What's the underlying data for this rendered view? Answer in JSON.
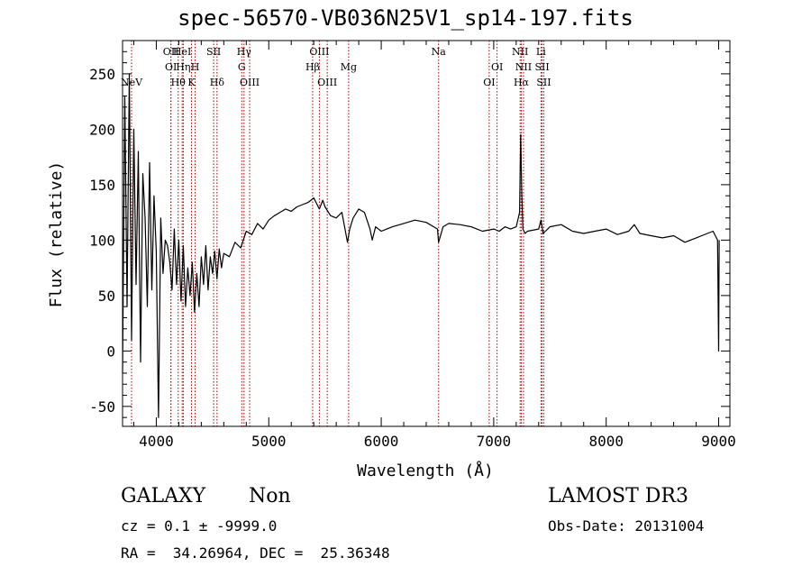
{
  "chart_data": {
    "type": "line",
    "title": "spec-56570-VB036N25V1_sp14-197.fits",
    "xlabel": "Wavelength (Å)",
    "ylabel": "Flux (relative)",
    "xlim": [
      3700,
      9100
    ],
    "ylim": [
      -68,
      280
    ],
    "x_ticks": [
      4000,
      5000,
      6000,
      7000,
      8000,
      9000
    ],
    "y_ticks": [
      -50,
      0,
      50,
      100,
      150,
      200,
      250
    ],
    "series": [
      {
        "name": "flux",
        "x": [
          3700,
          3720,
          3740,
          3760,
          3780,
          3800,
          3820,
          3840,
          3860,
          3880,
          3900,
          3920,
          3940,
          3960,
          3980,
          4000,
          4020,
          4040,
          4060,
          4080,
          4100,
          4120,
          4140,
          4160,
          4180,
          4200,
          4220,
          4240,
          4260,
          4280,
          4300,
          4320,
          4340,
          4360,
          4380,
          4400,
          4420,
          4440,
          4460,
          4480,
          4500,
          4520,
          4540,
          4560,
          4580,
          4600,
          4650,
          4700,
          4750,
          4800,
          4850,
          4900,
          4950,
          5000,
          5050,
          5100,
          5150,
          5200,
          5250,
          5300,
          5350,
          5400,
          5450,
          5480,
          5500,
          5550,
          5600,
          5650,
          5700,
          5720,
          5750,
          5800,
          5850,
          5900,
          5920,
          5950,
          6000,
          6100,
          6200,
          6300,
          6400,
          6500,
          6510,
          6550,
          6600,
          6700,
          6800,
          6900,
          7000,
          7050,
          7100,
          7150,
          7200,
          7230,
          7240,
          7250,
          7260,
          7280,
          7300,
          7400,
          7420,
          7430,
          7440,
          7460,
          7500,
          7600,
          7700,
          7800,
          7900,
          8000,
          8100,
          8200,
          8250,
          8300,
          8400,
          8500,
          8600,
          8700,
          8800,
          8900,
          8950,
          8990,
          9000,
          9005
        ],
        "values": [
          -20,
          230,
          40,
          250,
          10,
          200,
          60,
          180,
          -10,
          160,
          120,
          40,
          170,
          55,
          140,
          90,
          -60,
          120,
          70,
          100,
          95,
          80,
          55,
          110,
          60,
          100,
          45,
          95,
          40,
          75,
          50,
          80,
          35,
          70,
          40,
          85,
          60,
          95,
          55,
          85,
          70,
          90,
          65,
          92,
          75,
          88,
          85,
          98,
          93,
          108,
          105,
          115,
          110,
          118,
          122,
          125,
          128,
          126,
          130,
          132,
          134,
          138,
          128,
          136,
          130,
          122,
          120,
          125,
          98,
          110,
          120,
          128,
          125,
          110,
          100,
          112,
          108,
          112,
          115,
          118,
          116,
          110,
          98,
          112,
          115,
          114,
          112,
          108,
          110,
          108,
          112,
          110,
          112,
          125,
          195,
          140,
          110,
          106,
          108,
          110,
          118,
          112,
          106,
          108,
          112,
          114,
          108,
          106,
          108,
          110,
          105,
          108,
          114,
          106,
          104,
          102,
          104,
          98,
          102,
          106,
          108,
          100,
          0,
          100
        ]
      }
    ],
    "lines": [
      {
        "name": "NeV",
        "x": 3780,
        "row": 3
      },
      {
        "name": "OII",
        "x": 4130,
        "row": 1
      },
      {
        "name": "OI",
        "x": 4130,
        "row": 2
      },
      {
        "name": "Hθ",
        "x": 4195,
        "row": 3
      },
      {
        "name": "HeI",
        "x": 4230,
        "row": 1
      },
      {
        "name": "Hη",
        "x": 4240,
        "row": 2
      },
      {
        "name": "K",
        "x": 4313,
        "row": 3
      },
      {
        "name": "H",
        "x": 4345,
        "row": 2
      },
      {
        "name": "SII",
        "x": 4510,
        "row": 1
      },
      {
        "name": "Hδ",
        "x": 4540,
        "row": 3
      },
      {
        "name": "Hγ",
        "x": 4780,
        "row": 1
      },
      {
        "name": "G",
        "x": 4760,
        "row": 2
      },
      {
        "name": "OIII",
        "x": 4830,
        "row": 3
      },
      {
        "name": "Hβ",
        "x": 5390,
        "row": 2
      },
      {
        "name": "OIII",
        "x": 5450,
        "row": 1
      },
      {
        "name": "OIII",
        "x": 5520,
        "row": 3
      },
      {
        "name": "Mg",
        "x": 5710,
        "row": 2
      },
      {
        "name": "Na",
        "x": 6510,
        "row": 1
      },
      {
        "name": "OI",
        "x": 6960,
        "row": 3
      },
      {
        "name": "OI",
        "x": 7030,
        "row": 2
      },
      {
        "name": "NII",
        "x": 7235,
        "row": 1
      },
      {
        "name": "NII",
        "x": 7265,
        "row": 2
      },
      {
        "name": "Hα",
        "x": 7245,
        "row": 3
      },
      {
        "name": "Li",
        "x": 7420,
        "row": 1
      },
      {
        "name": "SII",
        "x": 7430,
        "row": 2
      },
      {
        "name": "SII",
        "x": 7445,
        "row": 3
      }
    ],
    "grid": false,
    "line_color": "#000000",
    "marker_color": "#aa0000"
  },
  "info": {
    "class": "GALAXY",
    "subclass": "Non",
    "survey": "LAMOST DR3",
    "cz": "cz = 0.1 ± -9999.0",
    "obs_date": "Obs-Date: 20131004",
    "radec": "RA =  34.26964, DEC =  25.36348"
  }
}
